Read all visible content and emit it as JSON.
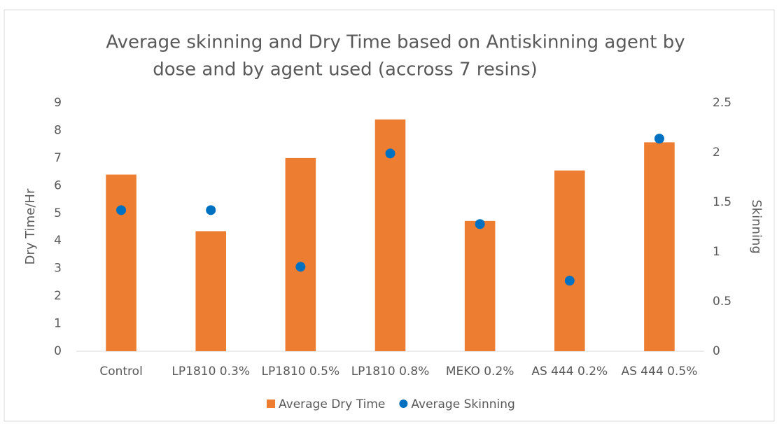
{
  "chart_data": {
    "type": "bar",
    "title": [
      "Average skinning and Dry Time based on Antiskinning agent by",
      "dose and by agent used (accross 7 resins)"
    ],
    "categories": [
      "Control",
      "LP1810 0.3%",
      "LP1810 0.5%",
      "LP1810 0.8%",
      "MEKO 0.2%",
      "AS 444 0.2%",
      "AS 444 0.5%"
    ],
    "series": [
      {
        "name": "Average Dry Time",
        "type": "bar",
        "color": "#ED7D31",
        "values": [
          6.4,
          4.35,
          7.0,
          8.4,
          4.72,
          6.55,
          7.57
        ]
      },
      {
        "name": "Average Skinning",
        "type": "scatter",
        "axis": "y2",
        "color": "#0070C0",
        "values": [
          1.42,
          1.42,
          0.85,
          1.99,
          1.28,
          0.71,
          2.14
        ]
      }
    ],
    "ylabel": "Dry Time/Hr",
    "y2label": "Skinning",
    "ylim": [
      0,
      9
    ],
    "yticks": [
      0,
      1,
      2,
      3,
      4,
      5,
      6,
      7,
      8,
      9
    ],
    "y2lim": [
      0,
      2.5
    ],
    "y2ticks": [
      0,
      0.5,
      1,
      1.5,
      2,
      2.5
    ],
    "grid": false,
    "legend": "bottom"
  }
}
